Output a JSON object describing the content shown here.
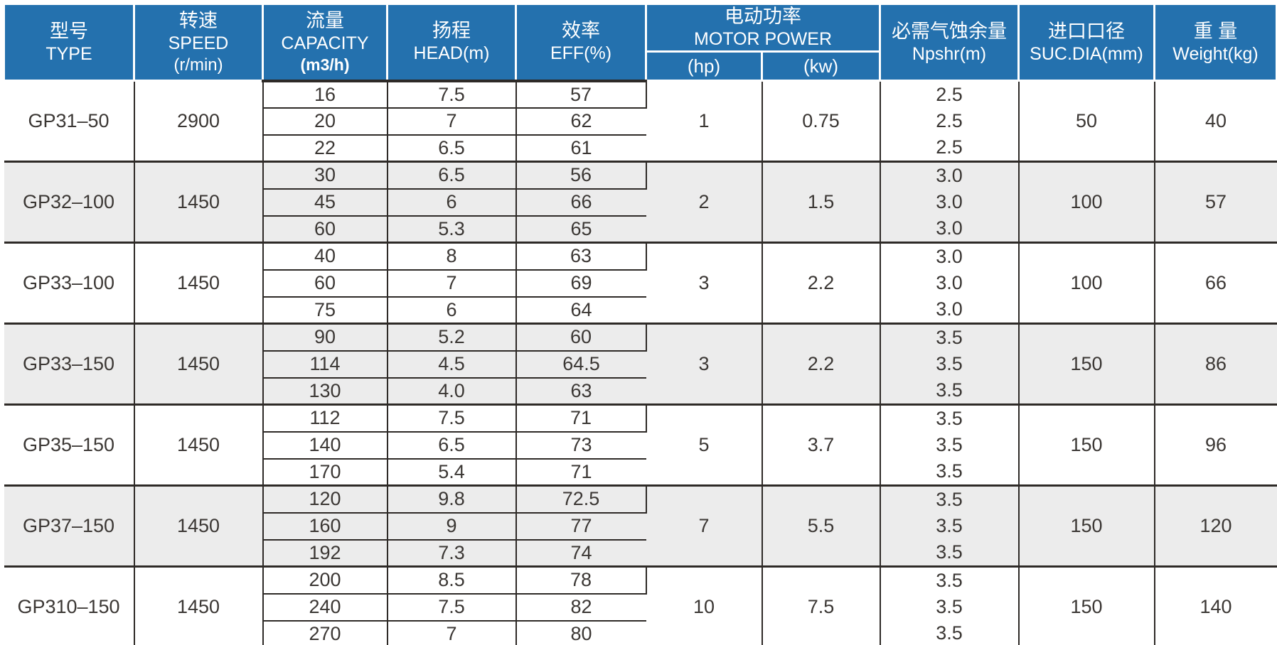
{
  "table": {
    "headers": {
      "type": {
        "zh": "型号",
        "en": "TYPE"
      },
      "speed": {
        "zh": "转速",
        "en": "SPEED",
        "unit": "(r/min)"
      },
      "capacity": {
        "zh": "流量",
        "en": "CAPACITY",
        "unit": "(m3/h)"
      },
      "head": {
        "zh": "扬程",
        "en": "HEAD(m)"
      },
      "eff": {
        "zh": "效率",
        "en": "EFF(%)"
      },
      "motor_power": {
        "zh": "电动功率",
        "en": "MOTOR POWER",
        "sub_hp": "(hp)",
        "sub_kw": "(kw)"
      },
      "npshr": {
        "zh": "必需气蚀余量",
        "en": "Npshr(m)"
      },
      "suc_dia": {
        "zh": "进口口径",
        "en": "SUC.DIA(mm)"
      },
      "weight": {
        "zh": "重 量",
        "en": "Weight(kg)"
      }
    },
    "rows": [
      {
        "type": "GP31–50",
        "speed": "2900",
        "capacity": [
          "16",
          "20",
          "22"
        ],
        "head": [
          "7.5",
          "7",
          "6.5"
        ],
        "eff": [
          "57",
          "62",
          "61"
        ],
        "hp": "1",
        "kw": "0.75",
        "npshr": [
          "2.5",
          "2.5",
          "2.5"
        ],
        "suc_dia": "50",
        "weight": "40"
      },
      {
        "type": "GP32–100",
        "speed": "1450",
        "capacity": [
          "30",
          "45",
          "60"
        ],
        "head": [
          "6.5",
          "6",
          "5.3"
        ],
        "eff": [
          "56",
          "66",
          "65"
        ],
        "hp": "2",
        "kw": "1.5",
        "npshr": [
          "3.0",
          "3.0",
          "3.0"
        ],
        "suc_dia": "100",
        "weight": "57"
      },
      {
        "type": "GP33–100",
        "speed": "1450",
        "capacity": [
          "40",
          "60",
          "75"
        ],
        "head": [
          "8",
          "7",
          "6"
        ],
        "eff": [
          "63",
          "69",
          "64"
        ],
        "hp": "3",
        "kw": "2.2",
        "npshr": [
          "3.0",
          "3.0",
          "3.0"
        ],
        "suc_dia": "100",
        "weight": "66"
      },
      {
        "type": "GP33–150",
        "speed": "1450",
        "capacity": [
          "90",
          "114",
          "130"
        ],
        "head": [
          "5.2",
          "4.5",
          "4.0"
        ],
        "eff": [
          "60",
          "64.5",
          "63"
        ],
        "hp": "3",
        "kw": "2.2",
        "npshr": [
          "3.5",
          "3.5",
          "3.5"
        ],
        "suc_dia": "150",
        "weight": "86"
      },
      {
        "type": "GP35–150",
        "speed": "1450",
        "capacity": [
          "112",
          "140",
          "170"
        ],
        "head": [
          "7.5",
          "6.5",
          "5.4"
        ],
        "eff": [
          "71",
          "73",
          "71"
        ],
        "hp": "5",
        "kw": "3.7",
        "npshr": [
          "3.5",
          "3.5",
          "3.5"
        ],
        "suc_dia": "150",
        "weight": "96"
      },
      {
        "type": "GP37–150",
        "speed": "1450",
        "capacity": [
          "120",
          "160",
          "192"
        ],
        "head": [
          "9.8",
          "9",
          "7.3"
        ],
        "eff": [
          "72.5",
          "77",
          "74"
        ],
        "hp": "7",
        "kw": "5.5",
        "npshr": [
          "3.5",
          "3.5",
          "3.5"
        ],
        "suc_dia": "150",
        "weight": "120"
      },
      {
        "type": "GP310–150",
        "speed": "1450",
        "capacity": [
          "200",
          "240",
          "270"
        ],
        "head": [
          "8.5",
          "7.5",
          "7"
        ],
        "eff": [
          "78",
          "82",
          "80"
        ],
        "hp": "10",
        "kw": "7.5",
        "npshr": [
          "3.5",
          "3.5",
          "3.5"
        ],
        "suc_dia": "150",
        "weight": "140"
      }
    ]
  },
  "colors": {
    "header_bg": "#2471ae",
    "alt_row_bg": "#ececec",
    "border": "#2e2a27",
    "text": "#3b3734"
  }
}
